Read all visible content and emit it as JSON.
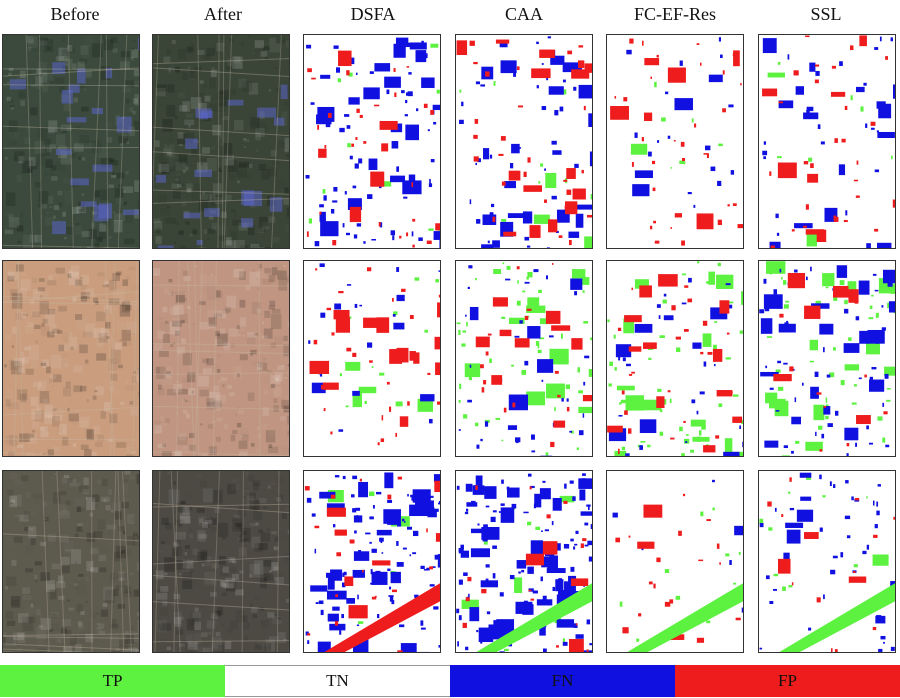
{
  "headers": [
    "Before",
    "After",
    "DSFA",
    "CAA",
    "FC-EF-Res",
    "SSL"
  ],
  "legend": [
    {
      "label": "TP",
      "color": "#5cf23f"
    },
    {
      "label": "TN",
      "color": "#ffffff"
    },
    {
      "label": "FN",
      "color": "#1010e0"
    },
    {
      "label": "FP",
      "color": "#ee1c1c"
    }
  ],
  "colors": {
    "tp": "#5cf23f",
    "fn": "#1010e0",
    "fp": "#ee1c1c",
    "row1_before": "#3b4a3c",
    "row1_after": "#3a4537",
    "row2_before": "#c99d7e",
    "row2_after": "#c09682",
    "row3_before": "#5d5a4e",
    "row3_after": "#4d4a44"
  },
  "rows": [
    "row-1",
    "row-2",
    "row-3"
  ]
}
